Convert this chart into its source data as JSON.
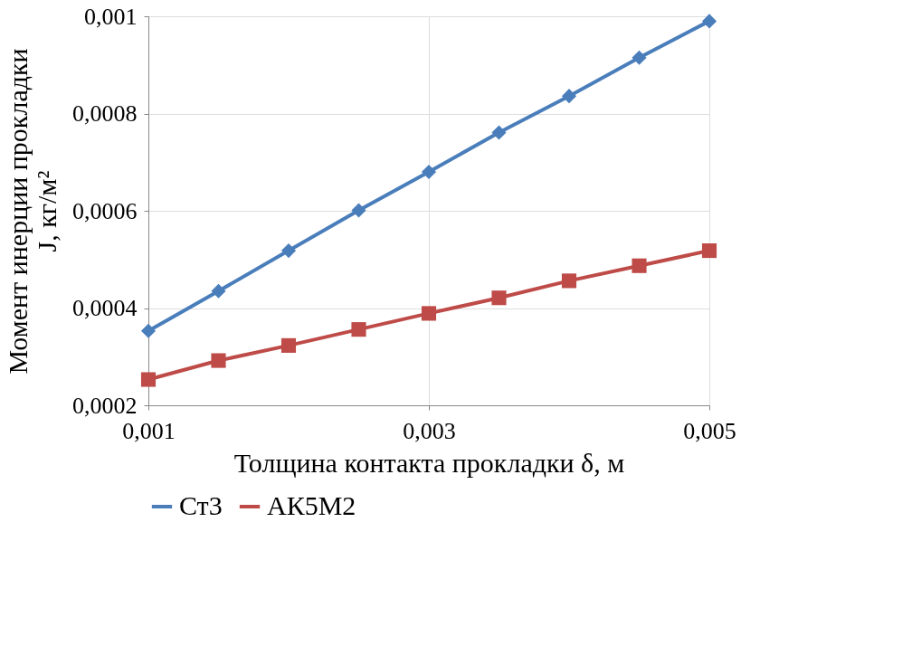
{
  "chart_data": {
    "type": "line",
    "xlabel": "Толщина контакта прокладки δ, м",
    "ylabel": "Момент инерции прокладки\nJ, кг/м²",
    "x": [
      0.001,
      0.0015,
      0.002,
      0.0025,
      0.003,
      0.0035,
      0.004,
      0.0045,
      0.005
    ],
    "series": [
      {
        "name": "Ст3",
        "color": "#4a7ebb",
        "marker": "diamond",
        "values": [
          0.000353,
          0.000435,
          0.000518,
          0.000601,
          0.00068,
          0.000761,
          0.000836,
          0.000915,
          0.00099
        ]
      },
      {
        "name": "АК5М2",
        "color": "#be4b48",
        "marker": "square",
        "values": [
          0.000253,
          0.000292,
          0.000323,
          0.000356,
          0.000389,
          0.000421,
          0.000456,
          0.000487,
          0.000518
        ]
      }
    ],
    "xlim": [
      0.001,
      0.005
    ],
    "xticks": [
      {
        "value": 0.001,
        "label": "0,001"
      },
      {
        "value": 0.003,
        "label": "0,003"
      },
      {
        "value": 0.005,
        "label": "0,005"
      }
    ],
    "ylim": [
      0.0002,
      0.001
    ],
    "yticks": [
      {
        "value": 0.0002,
        "label": "0,0002"
      },
      {
        "value": 0.0004,
        "label": "0,0004"
      },
      {
        "value": 0.0006,
        "label": "0,0006"
      },
      {
        "value": 0.0008,
        "label": "0,0008"
      },
      {
        "value": 0.001,
        "label": "0,001"
      }
    ],
    "grid": true,
    "legend": "bottom",
    "line_style": "solid"
  }
}
